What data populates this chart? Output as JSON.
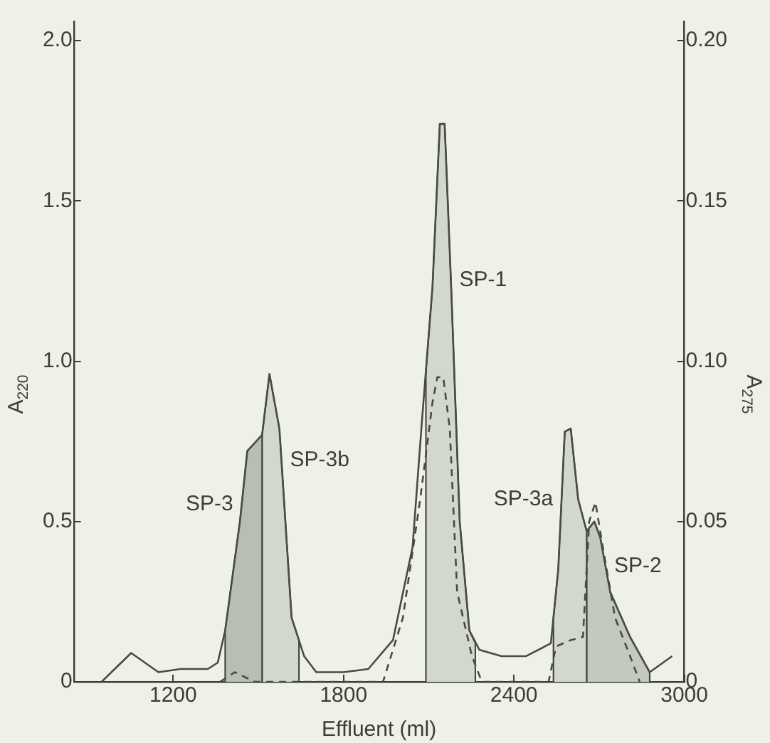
{
  "chart_data": {
    "type": "line",
    "xlabel": "Effluent (ml)",
    "ylabel": "A$_{220}$",
    "y2label": "A$_{275}$",
    "xlim": [
      850,
      3000
    ],
    "xticks": [
      1200,
      1800,
      2400,
      3000
    ],
    "ylim": [
      0,
      2.06
    ],
    "yticks": [
      0,
      {
        "value": 0.5,
        "label": "0.5"
      },
      {
        "value": 1,
        "label": "1.0"
      },
      {
        "value": 1.5,
        "label": "1.5"
      },
      {
        "value": 2,
        "label": "2.0"
      }
    ],
    "y2lim": [
      0,
      0.206
    ],
    "y2ticks": [
      0,
      {
        "value": 0.05,
        "label": "0.05"
      },
      {
        "value": 0.1,
        "label": "0.10"
      },
      {
        "value": 0.15,
        "label": "0.15"
      },
      {
        "value": 0.2,
        "label": "0.20"
      }
    ],
    "grid": false,
    "legend": false,
    "marker": "none",
    "series": [
      {
        "color": "#4a4a46",
        "line_style": "solid",
        "x": [
          948,
          1052,
          1148,
          1226,
          1322,
          1357,
          1383,
          1435,
          1461,
          1513,
          1539,
          1574,
          1617,
          1661,
          1704,
          1800,
          1887,
          1974,
          2043,
          2074,
          2113,
          2139,
          2156,
          2179,
          2209,
          2243,
          2278,
          2356,
          2443,
          2530,
          2556,
          2579,
          2600,
          2626,
          2656,
          2683,
          2704,
          2739,
          2809,
          2878,
          2957
        ],
        "values": [
          0,
          0.09,
          0.03,
          0.04,
          0.04,
          0.06,
          0.16,
          0.5,
          0.72,
          0.77,
          0.96,
          0.79,
          0.2,
          0.08,
          0.03,
          0.03,
          0.04,
          0.13,
          0.42,
          0.79,
          1.23,
          1.74,
          1.74,
          1.23,
          0.5,
          0.16,
          0.1,
          0.08,
          0.08,
          0.12,
          0.35,
          0.78,
          0.79,
          0.57,
          0.47,
          0.5,
          0.45,
          0.28,
          0.14,
          0.03,
          0.08
        ]
      },
      {
        "color": "#4a4a46",
        "line_style": "dashed",
        "axis": "y2",
        "x": [
          1365,
          1417,
          1487,
          1939,
          2009,
          2070,
          2113,
          2130,
          2151,
          2174,
          2200,
          2252,
          2287,
          2522,
          2548,
          2600,
          2643,
          2665,
          2687,
          2713,
          2756,
          2809,
          2843
        ],
        "values": [
          0,
          0.003,
          0,
          0,
          0.02,
          0.057,
          0.087,
          0.095,
          0.095,
          0.079,
          0.028,
          0.008,
          0,
          0,
          0.011,
          0.013,
          0.014,
          0.05,
          0.056,
          0.042,
          0.02,
          0.008,
          0
        ]
      },
      {
        "type": "area",
        "name": "SP-3",
        "color": "#b9beb2",
        "x": [
          1383,
          1383,
          1435,
          1461,
          1513,
          1513
        ],
        "values": [
          0,
          0.16,
          0.5,
          0.72,
          0.77,
          0
        ]
      },
      {
        "type": "area",
        "name": "SP-3b",
        "color": "#d3d8cc",
        "x": [
          1513,
          1513,
          1539,
          1574,
          1617,
          1643,
          1643
        ],
        "values": [
          0,
          0.77,
          0.96,
          0.79,
          0.2,
          0.13,
          0
        ]
      },
      {
        "type": "area",
        "name": "SP-1",
        "color": "#d3d8cc",
        "x": [
          2090,
          2090,
          2113,
          2139,
          2156,
          2179,
          2209,
          2243,
          2264,
          2264
        ],
        "values": [
          0,
          0.97,
          1.23,
          1.74,
          1.74,
          1.23,
          0.5,
          0.16,
          0.12,
          0
        ]
      },
      {
        "type": "area",
        "name": "SP-3a",
        "color": "#d3d8cc",
        "x": [
          2539,
          2539,
          2556,
          2579,
          2600,
          2626,
          2656,
          2656
        ],
        "values": [
          0,
          0.2,
          0.35,
          0.78,
          0.79,
          0.57,
          0.47,
          0
        ]
      },
      {
        "type": "area",
        "name": "SP-2",
        "color": "#c4c9bd",
        "x": [
          2656,
          2656,
          2683,
          2704,
          2739,
          2809,
          2878,
          2878
        ],
        "values": [
          0,
          0.47,
          0.5,
          0.45,
          0.28,
          0.14,
          0.03,
          0
        ]
      }
    ]
  }
}
